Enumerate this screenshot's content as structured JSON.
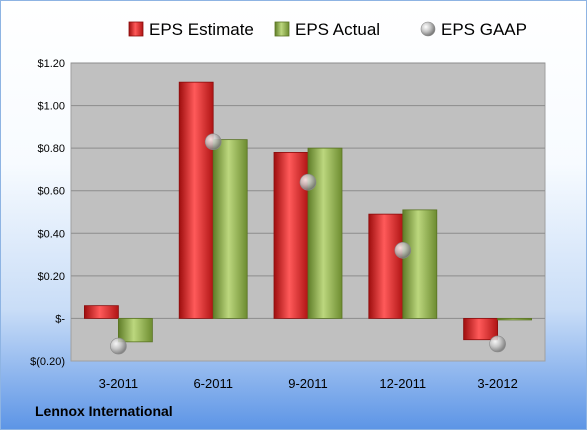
{
  "company": "Lennox International",
  "chart_data": {
    "type": "bar",
    "categories": [
      "3-2011",
      "6-2011",
      "9-2011",
      "12-2011",
      "3-2012"
    ],
    "series": [
      {
        "name": "EPS Estimate",
        "kind": "bar",
        "color": "#e02020",
        "values": [
          0.06,
          1.11,
          0.78,
          0.49,
          -0.1
        ]
      },
      {
        "name": "EPS Actual",
        "kind": "bar",
        "color": "#8fb24a",
        "values": [
          -0.11,
          0.84,
          0.8,
          0.51,
          0.0
        ]
      },
      {
        "name": "EPS GAAP",
        "kind": "marker",
        "color": "#bfbfbf",
        "values": [
          -0.13,
          0.83,
          0.64,
          0.32,
          -0.12
        ]
      }
    ],
    "yticks": [
      {
        "value": 1.2,
        "label": "$1.20"
      },
      {
        "value": 1.0,
        "label": "$1.00"
      },
      {
        "value": 0.8,
        "label": "$0.80"
      },
      {
        "value": 0.6,
        "label": "$0.60"
      },
      {
        "value": 0.4,
        "label": "$0.40"
      },
      {
        "value": 0.2,
        "label": "$0.20"
      },
      {
        "value": 0.0,
        "label": "$-"
      },
      {
        "value": -0.2,
        "label": "$(0.20)"
      }
    ],
    "ylim": [
      -0.2,
      1.2
    ],
    "grid": true,
    "legend_position": "top",
    "plot_background": "#bfbfbf"
  }
}
